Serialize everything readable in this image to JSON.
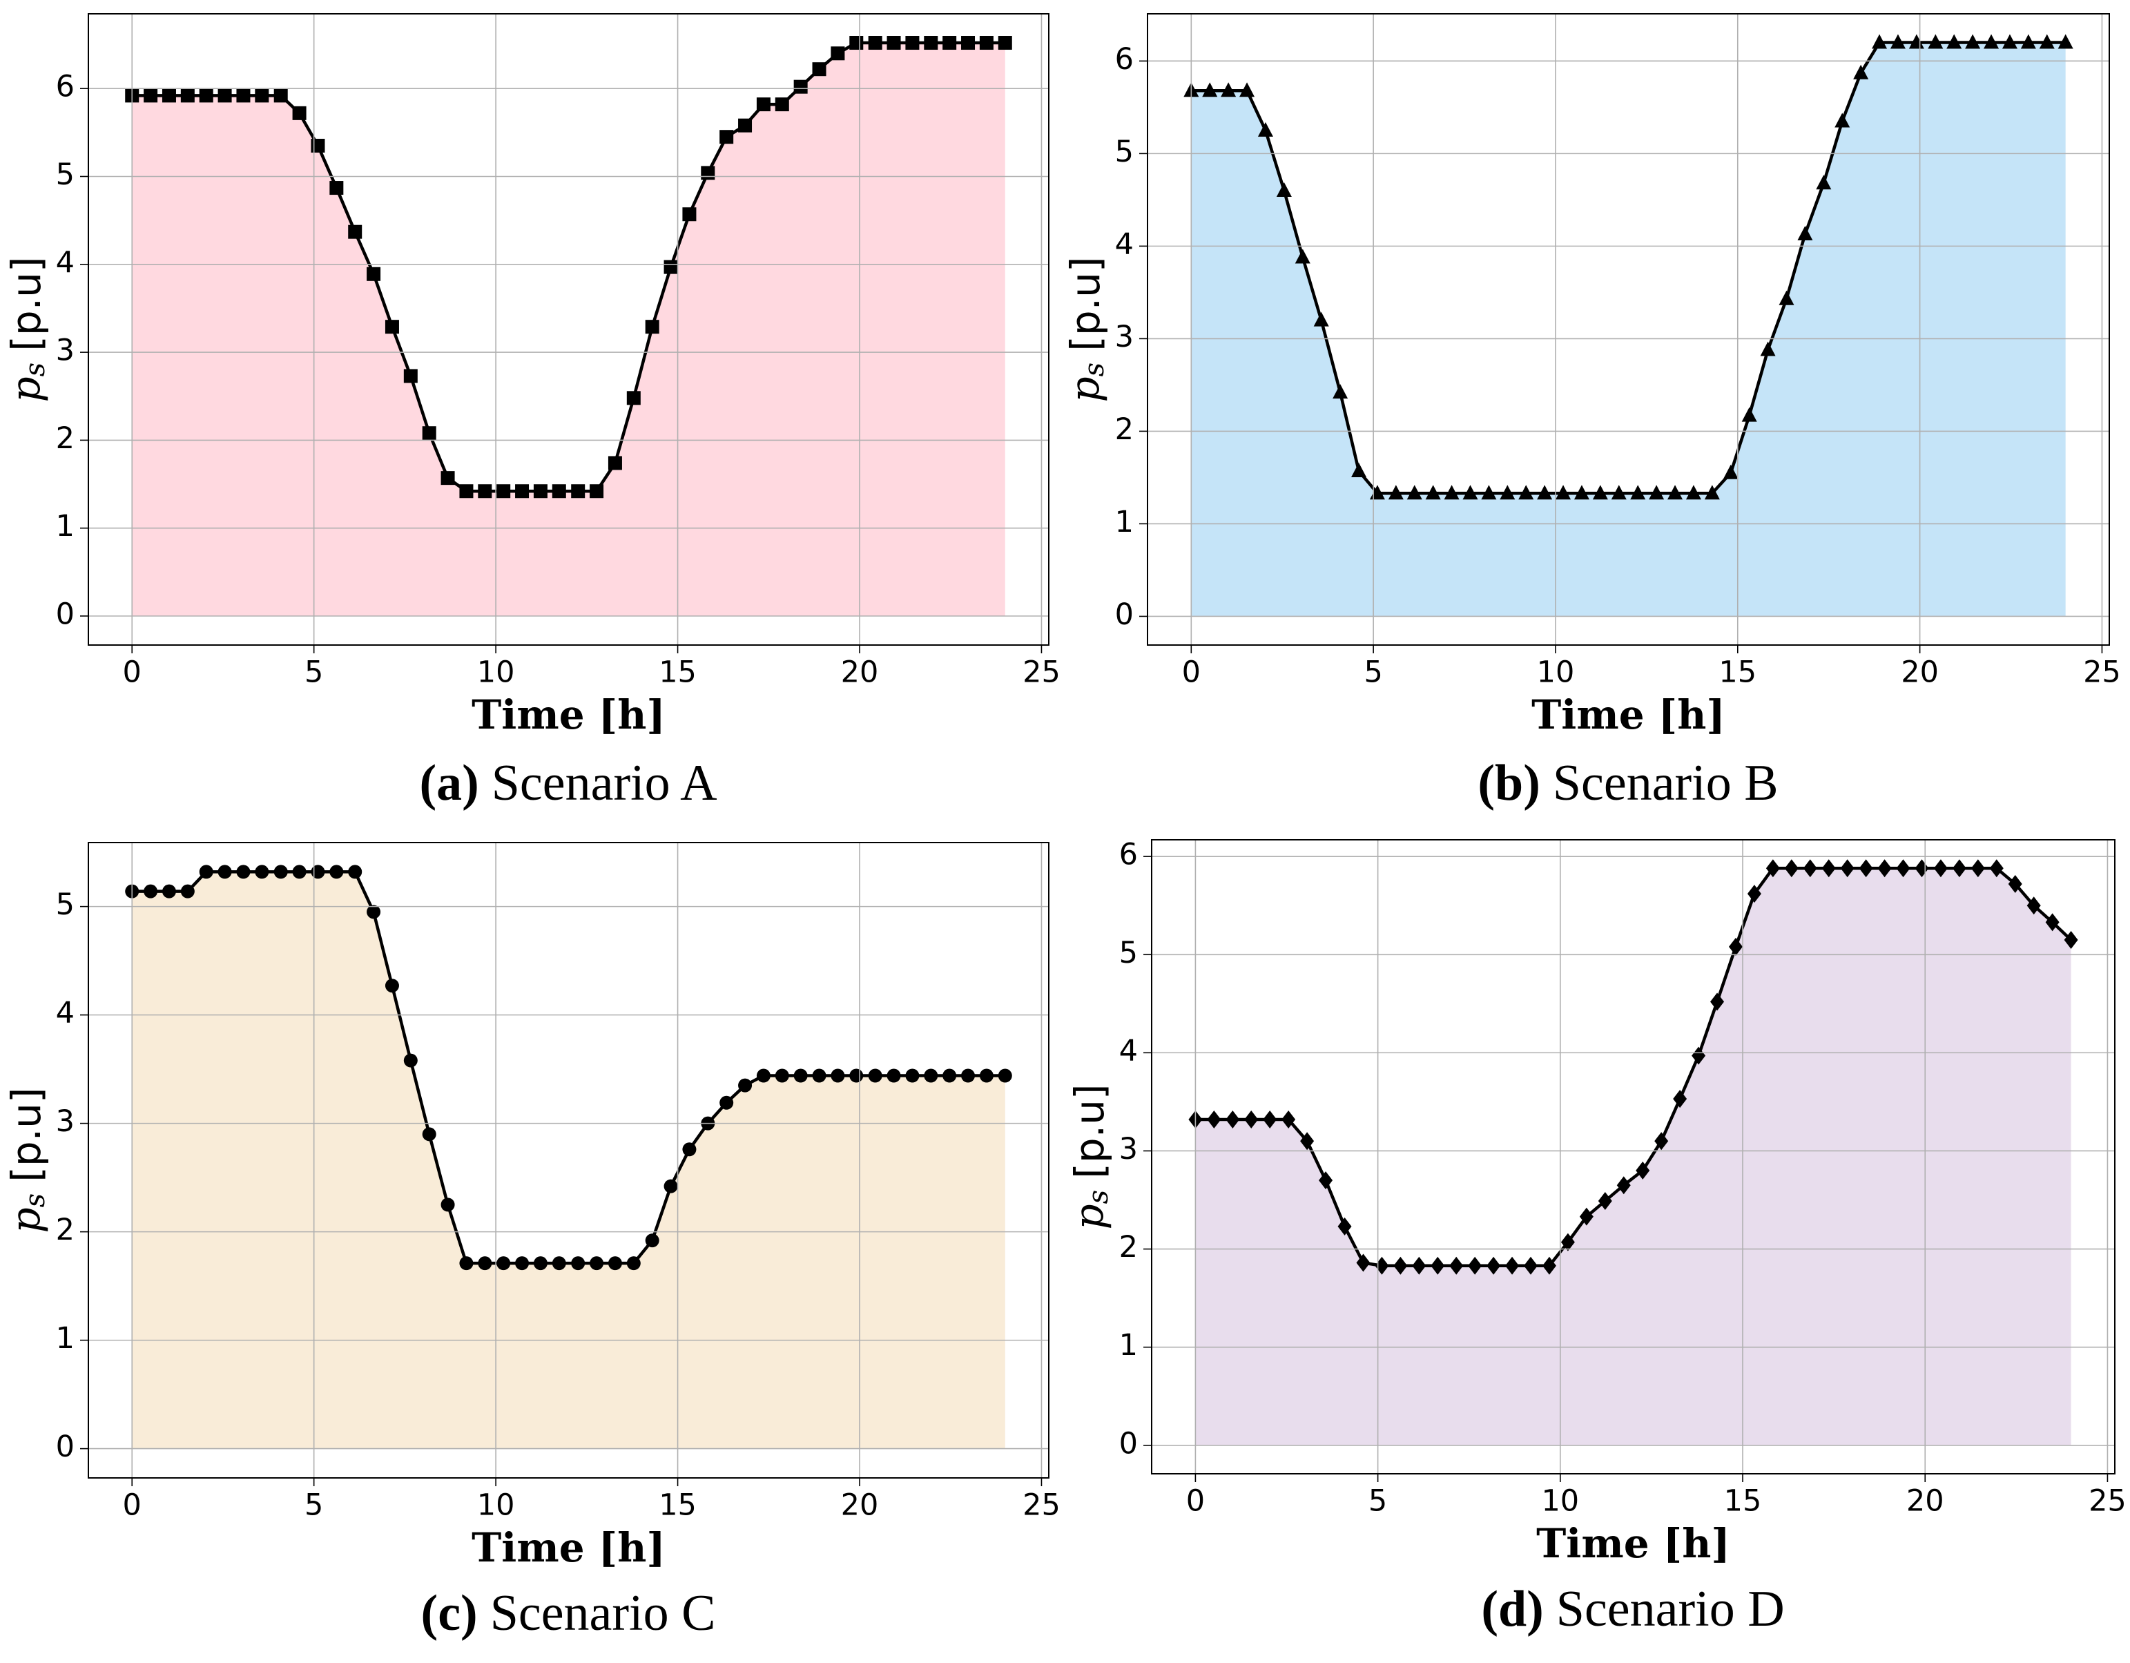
{
  "chart_data": [
    {
      "type": "line",
      "panel": "(a)",
      "title": "Scenario A",
      "xlabel": "Time [h]",
      "ylabel": {
        "symbol": "p",
        "subscript": "s",
        "unit": "[p.u]"
      },
      "fill": "#ffd9e0",
      "color": "#000000",
      "marker": "square",
      "x": [
        0,
        0.51,
        1.02,
        1.53,
        2.04,
        2.55,
        3.06,
        3.57,
        4.09,
        4.6,
        5.11,
        5.62,
        6.13,
        6.64,
        7.15,
        7.66,
        8.17,
        8.68,
        9.19,
        9.7,
        10.21,
        10.72,
        11.23,
        11.74,
        12.26,
        12.77,
        13.28,
        13.79,
        14.3,
        14.81,
        15.32,
        15.83,
        16.34,
        16.85,
        17.36,
        17.87,
        18.38,
        18.89,
        19.4,
        19.91,
        20.43,
        20.94,
        21.45,
        21.96,
        22.47,
        22.98,
        23.49,
        24
      ],
      "values": [
        5.92,
        5.92,
        5.92,
        5.92,
        5.92,
        5.92,
        5.92,
        5.92,
        5.92,
        5.72,
        5.35,
        4.87,
        4.37,
        3.89,
        3.29,
        2.73,
        2.08,
        1.57,
        1.42,
        1.42,
        1.42,
        1.42,
        1.42,
        1.42,
        1.42,
        1.42,
        1.74,
        2.48,
        3.29,
        3.97,
        4.57,
        5.04,
        5.45,
        5.58,
        5.82,
        5.82,
        6.02,
        6.22,
        6.4,
        6.52,
        6.52,
        6.52,
        6.52,
        6.52,
        6.52,
        6.52,
        6.52,
        6.52
      ],
      "xlim": [
        -1.2,
        25.2
      ],
      "ylim": [
        -0.33,
        6.85
      ],
      "xticks": [
        0,
        5,
        10,
        15,
        20,
        25
      ],
      "yticks": [
        0,
        1,
        2,
        3,
        4,
        5,
        6
      ],
      "grid": true
    },
    {
      "type": "line",
      "panel": "(b)",
      "title": "Scenario B",
      "xlabel": "Time [h]",
      "ylabel": {
        "symbol": "p",
        "subscript": "s",
        "unit": "[p.u]"
      },
      "fill": "#c5e4f8",
      "color": "#000000",
      "marker": "triangle",
      "x": [
        0,
        0.51,
        1.02,
        1.53,
        2.04,
        2.55,
        3.06,
        3.57,
        4.09,
        4.6,
        5.11,
        5.62,
        6.13,
        6.64,
        7.15,
        7.66,
        8.17,
        8.68,
        9.19,
        9.7,
        10.21,
        10.72,
        11.23,
        11.74,
        12.26,
        12.77,
        13.28,
        13.79,
        14.3,
        14.81,
        15.32,
        15.83,
        16.34,
        16.85,
        17.36,
        17.87,
        18.38,
        18.89,
        19.4,
        19.91,
        20.43,
        20.94,
        21.45,
        21.96,
        22.47,
        22.98,
        23.49,
        24
      ],
      "values": [
        5.68,
        5.68,
        5.68,
        5.68,
        5.25,
        4.6,
        3.88,
        3.2,
        2.42,
        1.57,
        1.33,
        1.33,
        1.33,
        1.33,
        1.33,
        1.33,
        1.33,
        1.33,
        1.33,
        1.33,
        1.33,
        1.33,
        1.33,
        1.33,
        1.33,
        1.33,
        1.33,
        1.33,
        1.33,
        1.55,
        2.17,
        2.88,
        3.43,
        4.13,
        4.68,
        5.35,
        5.87,
        6.2,
        6.2,
        6.2,
        6.2,
        6.2,
        6.2,
        6.2,
        6.2,
        6.2,
        6.2,
        6.2
      ],
      "xlim": [
        -1.2,
        25.2
      ],
      "ylim": [
        -0.31,
        6.51
      ],
      "xticks": [
        0,
        5,
        10,
        15,
        20,
        25
      ],
      "yticks": [
        0,
        1,
        2,
        3,
        4,
        5,
        6
      ],
      "grid": true
    },
    {
      "type": "line",
      "panel": "(c)",
      "title": "Scenario C",
      "xlabel": "Time [h]",
      "ylabel": {
        "symbol": "p",
        "subscript": "s",
        "unit": "[p.u]"
      },
      "fill": "#f9ecd8",
      "color": "#000000",
      "marker": "circle",
      "x": [
        0,
        0.51,
        1.02,
        1.53,
        2.04,
        2.55,
        3.06,
        3.57,
        4.09,
        4.6,
        5.11,
        5.62,
        6.13,
        6.64,
        7.15,
        7.66,
        8.17,
        8.68,
        9.19,
        9.7,
        10.21,
        10.72,
        11.23,
        11.74,
        12.26,
        12.77,
        13.28,
        13.79,
        14.3,
        14.81,
        15.32,
        15.83,
        16.34,
        16.85,
        17.36,
        17.87,
        18.38,
        18.89,
        19.4,
        19.91,
        20.43,
        20.94,
        21.45,
        21.96,
        22.47,
        22.98,
        23.49,
        24
      ],
      "values": [
        5.14,
        5.14,
        5.14,
        5.14,
        5.32,
        5.32,
        5.32,
        5.32,
        5.32,
        5.32,
        5.32,
        5.32,
        5.32,
        4.95,
        4.27,
        3.58,
        2.9,
        2.25,
        1.71,
        1.71,
        1.71,
        1.71,
        1.71,
        1.71,
        1.71,
        1.71,
        1.71,
        1.71,
        1.92,
        2.42,
        2.76,
        3.0,
        3.19,
        3.35,
        3.44,
        3.44,
        3.44,
        3.44,
        3.44,
        3.44,
        3.44,
        3.44,
        3.44,
        3.44,
        3.44,
        3.44,
        3.44,
        3.44
      ],
      "xlim": [
        -1.2,
        25.2
      ],
      "ylim": [
        -0.27,
        5.59
      ],
      "xticks": [
        0,
        5,
        10,
        15,
        20,
        25
      ],
      "yticks": [
        0,
        1,
        2,
        3,
        4,
        5
      ],
      "grid": true
    },
    {
      "type": "line",
      "panel": "(d)",
      "title": "Scenario D",
      "xlabel": "Time [h]",
      "ylabel": {
        "symbol": "p",
        "subscript": "s",
        "unit": "[p.u]"
      },
      "fill": "#e8dded",
      "color": "#000000",
      "marker": "diamond",
      "x": [
        0,
        0.51,
        1.02,
        1.53,
        2.04,
        2.55,
        3.06,
        3.57,
        4.09,
        4.6,
        5.11,
        5.62,
        6.13,
        6.64,
        7.15,
        7.66,
        8.17,
        8.68,
        9.19,
        9.7,
        10.21,
        10.72,
        11.23,
        11.74,
        12.26,
        12.77,
        13.28,
        13.79,
        14.3,
        14.81,
        15.32,
        15.83,
        16.34,
        16.85,
        17.36,
        17.87,
        18.38,
        18.89,
        19.4,
        19.91,
        20.43,
        20.94,
        21.45,
        21.96,
        22.47,
        22.98,
        23.49,
        24
      ],
      "values": [
        3.32,
        3.32,
        3.32,
        3.32,
        3.32,
        3.32,
        3.1,
        2.7,
        2.23,
        1.86,
        1.83,
        1.83,
        1.83,
        1.83,
        1.83,
        1.83,
        1.83,
        1.83,
        1.83,
        1.83,
        2.07,
        2.33,
        2.49,
        2.65,
        2.8,
        3.1,
        3.53,
        3.97,
        4.52,
        5.08,
        5.62,
        5.88,
        5.88,
        5.88,
        5.88,
        5.88,
        5.88,
        5.88,
        5.88,
        5.88,
        5.88,
        5.88,
        5.88,
        5.88,
        5.72,
        5.5,
        5.33,
        5.15
      ],
      "xlim": [
        -1.2,
        25.2
      ],
      "ylim": [
        -0.29,
        6.17
      ],
      "xticks": [
        0,
        5,
        10,
        15,
        20,
        25
      ],
      "yticks": [
        0,
        1,
        2,
        3,
        4,
        5,
        6
      ],
      "grid": true
    }
  ]
}
